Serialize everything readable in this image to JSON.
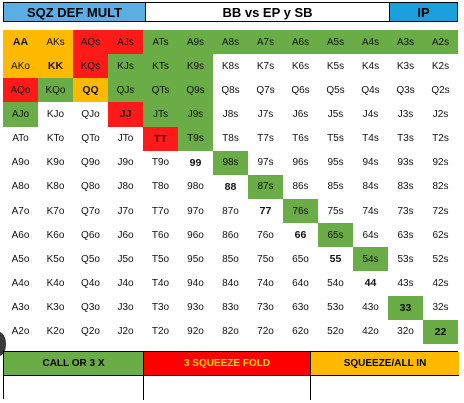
{
  "header": {
    "left": "SQZ DEF MULT",
    "middle": "BB vs EP y SB",
    "right": "IP"
  },
  "colors": {
    "green": "#6aac46",
    "red": "#ff1a1a",
    "yellow": "#ffba00",
    "white": "#ffffff",
    "header_blue": "#1aa0dc"
  },
  "grid": [
    [
      "AA",
      "AKs",
      "AQs",
      "AJs",
      "ATs",
      "A9s",
      "A8s",
      "A7s",
      "A6s",
      "A5s",
      "A4s",
      "A3s",
      "A2s"
    ],
    [
      "AKo",
      "KK",
      "KQs",
      "KJs",
      "KTs",
      "K9s",
      "K8s",
      "K7s",
      "K6s",
      "K5s",
      "K4s",
      "K3s",
      "K2s"
    ],
    [
      "AQo",
      "KQo",
      "QQ",
      "QJs",
      "QTs",
      "Q9s",
      "Q8s",
      "Q7s",
      "Q6s",
      "Q5s",
      "Q4s",
      "Q3s",
      "Q2s"
    ],
    [
      "AJo",
      "KJo",
      "QJo",
      "JJ",
      "JTs",
      "J9s",
      "J8s",
      "J7s",
      "J6s",
      "J5s",
      "J4s",
      "J3s",
      "J2s"
    ],
    [
      "ATo",
      "KTo",
      "QTo",
      "JTo",
      "TT",
      "T9s",
      "T8s",
      "T7s",
      "T6s",
      "T5s",
      "T4s",
      "T3s",
      "T2s"
    ],
    [
      "A9o",
      "K9o",
      "Q9o",
      "J9o",
      "T9o",
      "99",
      "98s",
      "97s",
      "96s",
      "95s",
      "94s",
      "93s",
      "92s"
    ],
    [
      "A8o",
      "K8o",
      "Q8o",
      "J8o",
      "T8o",
      "98o",
      "88",
      "87s",
      "86s",
      "85s",
      "84s",
      "83s",
      "82s"
    ],
    [
      "A7o",
      "K7o",
      "Q7o",
      "J7o",
      "T7o",
      "97o",
      "87o",
      "77",
      "76s",
      "75s",
      "74s",
      "73s",
      "72s"
    ],
    [
      "A6o",
      "K6o",
      "Q6o",
      "J6o",
      "T6o",
      "96o",
      "86o",
      "76o",
      "66",
      "65s",
      "64s",
      "63s",
      "62s"
    ],
    [
      "A5o",
      "K5o",
      "Q5o",
      "J5o",
      "T5o",
      "95o",
      "85o",
      "75o",
      "65o",
      "55",
      "54s",
      "53s",
      "52s"
    ],
    [
      "A4o",
      "K4o",
      "Q4o",
      "J4o",
      "T4o",
      "94o",
      "84o",
      "74o",
      "64o",
      "54o",
      "44",
      "43s",
      "42s"
    ],
    [
      "A3o",
      "K3o",
      "Q3o",
      "J3o",
      "T3o",
      "93o",
      "83o",
      "73o",
      "63o",
      "53o",
      "43o",
      "33",
      "32s"
    ],
    [
      "A2o",
      "K2o",
      "Q2o",
      "J2o",
      "T2o",
      "92o",
      "82o",
      "72o",
      "62o",
      "52o",
      "42o",
      "32o",
      "22"
    ]
  ],
  "grid_colors": [
    [
      "y",
      "y",
      "r",
      "r",
      "g",
      "g",
      "g",
      "g",
      "g",
      "g",
      "g",
      "g",
      "g"
    ],
    [
      "y",
      "y",
      "r",
      "g",
      "g",
      "g",
      "w",
      "w",
      "w",
      "w",
      "w",
      "w",
      "w"
    ],
    [
      "r",
      "g",
      "y",
      "g",
      "g",
      "g",
      "w",
      "w",
      "w",
      "w",
      "w",
      "w",
      "w"
    ],
    [
      "g",
      "w",
      "w",
      "r",
      "g",
      "g",
      "w",
      "w",
      "w",
      "w",
      "w",
      "w",
      "w"
    ],
    [
      "w",
      "w",
      "w",
      "w",
      "r",
      "g",
      "w",
      "w",
      "w",
      "w",
      "w",
      "w",
      "w"
    ],
    [
      "w",
      "w",
      "w",
      "w",
      "w",
      "w",
      "g",
      "w",
      "w",
      "w",
      "w",
      "w",
      "w"
    ],
    [
      "w",
      "w",
      "w",
      "w",
      "w",
      "w",
      "w",
      "g",
      "w",
      "w",
      "w",
      "w",
      "w"
    ],
    [
      "w",
      "w",
      "w",
      "w",
      "w",
      "w",
      "w",
      "w",
      "g",
      "w",
      "w",
      "w",
      "w"
    ],
    [
      "w",
      "w",
      "w",
      "w",
      "w",
      "w",
      "w",
      "w",
      "w",
      "g",
      "w",
      "w",
      "w"
    ],
    [
      "w",
      "w",
      "w",
      "w",
      "w",
      "w",
      "w",
      "w",
      "w",
      "w",
      "g",
      "w",
      "w"
    ],
    [
      "w",
      "w",
      "w",
      "w",
      "w",
      "w",
      "w",
      "w",
      "w",
      "w",
      "w",
      "w",
      "w"
    ],
    [
      "w",
      "w",
      "w",
      "w",
      "w",
      "w",
      "w",
      "w",
      "w",
      "w",
      "w",
      "g",
      "w"
    ],
    [
      "w",
      "w",
      "w",
      "w",
      "w",
      "w",
      "w",
      "w",
      "w",
      "w",
      "w",
      "w",
      "g"
    ]
  ],
  "legend": {
    "call": "CALL OR 3 X",
    "fold": "3 SQUEEZE FOLD",
    "squeeze": "SQUEEZE/ALL IN"
  }
}
